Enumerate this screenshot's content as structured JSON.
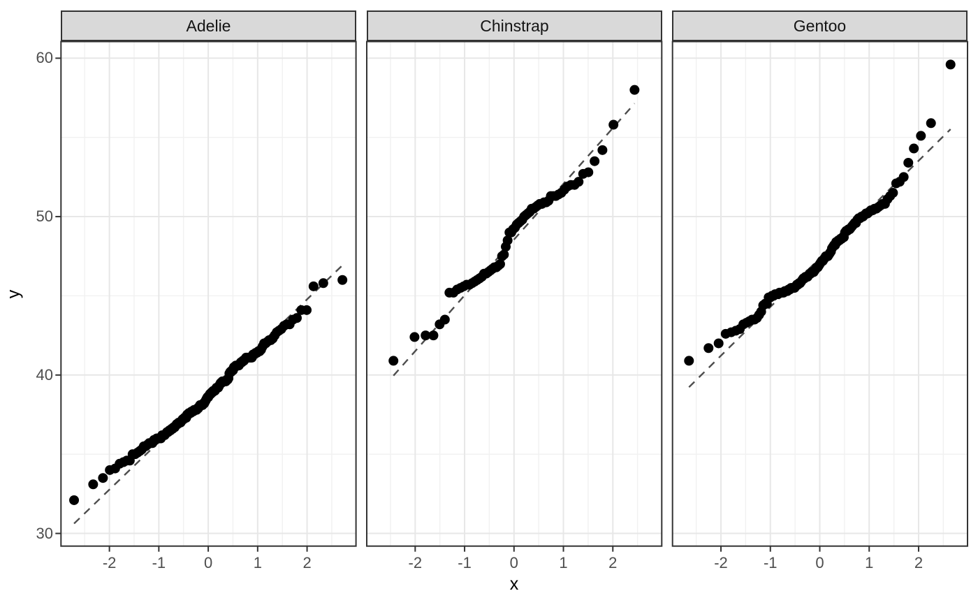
{
  "axes": {
    "x_title": "x",
    "y_title": "y",
    "x_tick_labels": [
      "-2",
      "-1",
      "0",
      "1",
      "2"
    ],
    "x_ticks": [
      -2,
      -1,
      0,
      1,
      2
    ],
    "x_minor": [
      -2.5,
      -1.5,
      -0.5,
      0.5,
      1.5,
      2.5
    ],
    "y_tick_labels": [
      "30",
      "40",
      "50",
      "60"
    ],
    "y_ticks": [
      30,
      40,
      50,
      60
    ],
    "y_minor": [
      35,
      45,
      55
    ],
    "xlim": [
      -2.98,
      2.99
    ],
    "ylim": [
      29.2,
      61.05
    ]
  },
  "style": {
    "background": "#FFFFFF",
    "panel_background": "#FFFFFF",
    "strip_fill": "#D9D9D9",
    "border_color": "#333333",
    "grid_major_color": "#E7E7E7",
    "grid_minor_color": "#F1F1F1",
    "point_color": "#000000",
    "qq_line_color": "#4D4D4D",
    "tick_label_color": "#4D4D4D",
    "point_radius": 7
  },
  "chart_data": [
    {
      "type": "scatter",
      "facet": "Adelie",
      "n": 151,
      "x_formula": "theoretical normal quantile qnorm((i-0.5)/n) for i-th sorted value",
      "qq_line": "dashed, through 1st/3rd quartile pairs, spanning qnorm(0.5/n)..qnorm((n-0.5)/n)",
      "y_sorted": [
        32.1,
        33.1,
        33.5,
        34.0,
        34.1,
        34.4,
        34.5,
        34.6,
        34.6,
        35.0,
        35.0,
        35.1,
        35.2,
        35.3,
        35.5,
        35.5,
        35.6,
        35.7,
        35.7,
        35.7,
        35.9,
        35.9,
        36.0,
        36.0,
        36.0,
        36.0,
        36.2,
        36.2,
        36.2,
        36.3,
        36.4,
        36.4,
        36.5,
        36.5,
        36.6,
        36.6,
        36.7,
        36.7,
        36.8,
        36.9,
        36.9,
        37.0,
        37.0,
        37.0,
        37.1,
        37.2,
        37.2,
        37.3,
        37.3,
        37.3,
        37.5,
        37.5,
        37.6,
        37.6,
        37.6,
        37.7,
        37.7,
        37.7,
        37.8,
        37.8,
        37.8,
        37.8,
        37.9,
        37.9,
        38.0,
        38.1,
        38.1,
        38.1,
        38.1,
        38.2,
        38.2,
        38.3,
        38.4,
        38.5,
        38.6,
        38.6,
        38.7,
        38.8,
        38.8,
        38.9,
        38.9,
        39.0,
        39.0,
        39.0,
        39.1,
        39.2,
        39.2,
        39.2,
        39.3,
        39.4,
        39.5,
        39.5,
        39.6,
        39.6,
        39.6,
        39.6,
        39.6,
        39.7,
        39.7,
        39.8,
        40.1,
        40.2,
        40.2,
        40.3,
        40.3,
        40.5,
        40.5,
        40.6,
        40.6,
        40.6,
        40.6,
        40.7,
        40.8,
        40.8,
        40.9,
        40.9,
        41.0,
        41.1,
        41.1,
        41.1,
        41.1,
        41.1,
        41.1,
        41.3,
        41.3,
        41.4,
        41.4,
        41.5,
        41.5,
        41.6,
        41.8,
        42.0,
        42.0,
        42.1,
        42.2,
        42.2,
        42.3,
        42.5,
        42.7,
        42.8,
        42.9,
        43.1,
        43.2,
        43.2,
        43.5,
        43.6,
        44.1,
        44.1,
        45.6,
        45.8,
        46.0
      ]
    },
    {
      "type": "scatter",
      "facet": "Chinstrap",
      "n": 68,
      "x_formula": "theoretical normal quantile qnorm((i-0.5)/n) for i-th sorted value",
      "qq_line": "dashed, through 1st/3rd quartile pairs, spanning qnorm(0.5/n)..qnorm((n-0.5)/n)",
      "y_sorted": [
        40.9,
        42.4,
        42.5,
        42.5,
        43.2,
        43.5,
        45.2,
        45.2,
        45.4,
        45.5,
        45.6,
        45.7,
        45.7,
        45.8,
        45.9,
        46.0,
        46.1,
        46.2,
        46.4,
        46.4,
        46.5,
        46.6,
        46.7,
        46.8,
        46.8,
        46.9,
        47.0,
        47.5,
        47.6,
        48.1,
        48.5,
        49.0,
        49.0,
        49.2,
        49.3,
        49.5,
        49.6,
        49.7,
        49.8,
        50.0,
        50.1,
        50.2,
        50.3,
        50.5,
        50.5,
        50.6,
        50.7,
        50.8,
        50.8,
        50.9,
        50.9,
        51.0,
        51.3,
        51.3,
        51.3,
        51.4,
        51.5,
        51.7,
        51.9,
        52.0,
        52.0,
        52.2,
        52.7,
        52.8,
        53.5,
        54.2,
        55.8,
        58.0
      ]
    },
    {
      "type": "scatter",
      "facet": "Gentoo",
      "n": 123,
      "x_formula": "theoretical normal quantile qnorm((i-0.5)/n) for i-th sorted value",
      "qq_line": "dashed, through 1st/3rd quartile pairs, spanning qnorm(0.5/n)..qnorm((n-0.5)/n)",
      "y_sorted": [
        40.9,
        41.7,
        42.0,
        42.6,
        42.7,
        42.8,
        42.9,
        43.2,
        43.3,
        43.4,
        43.5,
        43.5,
        43.6,
        43.8,
        44.0,
        44.4,
        44.5,
        44.5,
        44.9,
        44.9,
        45.0,
        45.0,
        45.1,
        45.1,
        45.1,
        45.2,
        45.2,
        45.2,
        45.2,
        45.3,
        45.3,
        45.3,
        45.4,
        45.4,
        45.5,
        45.5,
        45.5,
        45.5,
        45.6,
        45.7,
        45.7,
        45.8,
        45.8,
        45.9,
        46.0,
        46.1,
        46.1,
        46.2,
        46.2,
        46.2,
        46.3,
        46.4,
        46.4,
        46.5,
        46.5,
        46.5,
        46.6,
        46.7,
        46.8,
        46.8,
        46.9,
        47.0,
        47.1,
        47.2,
        47.2,
        47.3,
        47.4,
        47.5,
        47.5,
        47.5,
        47.6,
        47.7,
        47.8,
        48.0,
        48.1,
        48.2,
        48.2,
        48.4,
        48.4,
        48.5,
        48.5,
        48.6,
        48.6,
        48.7,
        48.7,
        49.0,
        49.1,
        49.1,
        49.2,
        49.2,
        49.3,
        49.4,
        49.5,
        49.6,
        49.6,
        49.8,
        49.9,
        49.9,
        50.0,
        50.0,
        50.1,
        50.2,
        50.2,
        50.3,
        50.4,
        50.4,
        50.5,
        50.5,
        50.6,
        50.7,
        50.8,
        50.8,
        51.1,
        51.3,
        51.5,
        52.1,
        52.2,
        52.5,
        53.4,
        54.3,
        55.1,
        55.9,
        59.6
      ]
    }
  ]
}
